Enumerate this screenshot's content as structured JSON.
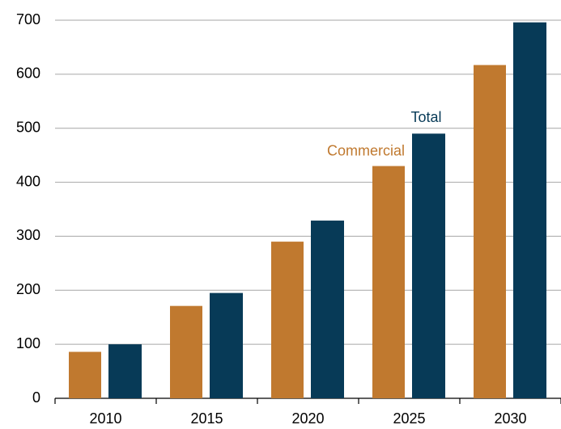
{
  "chart_data": {
    "type": "bar",
    "categories": [
      "2010",
      "2015",
      "2020",
      "2025",
      "2030"
    ],
    "series": [
      {
        "name": "Commercial",
        "color": "#c0792f",
        "values": [
          86,
          171,
          290,
          430,
          617
        ]
      },
      {
        "name": "Total",
        "color": "#073a57",
        "values": [
          100,
          195,
          329,
          490,
          696
        ]
      }
    ],
    "ylim": [
      0,
      700
    ],
    "yticks": [
      0,
      100,
      200,
      300,
      400,
      500,
      600,
      700
    ],
    "grid": true
  }
}
